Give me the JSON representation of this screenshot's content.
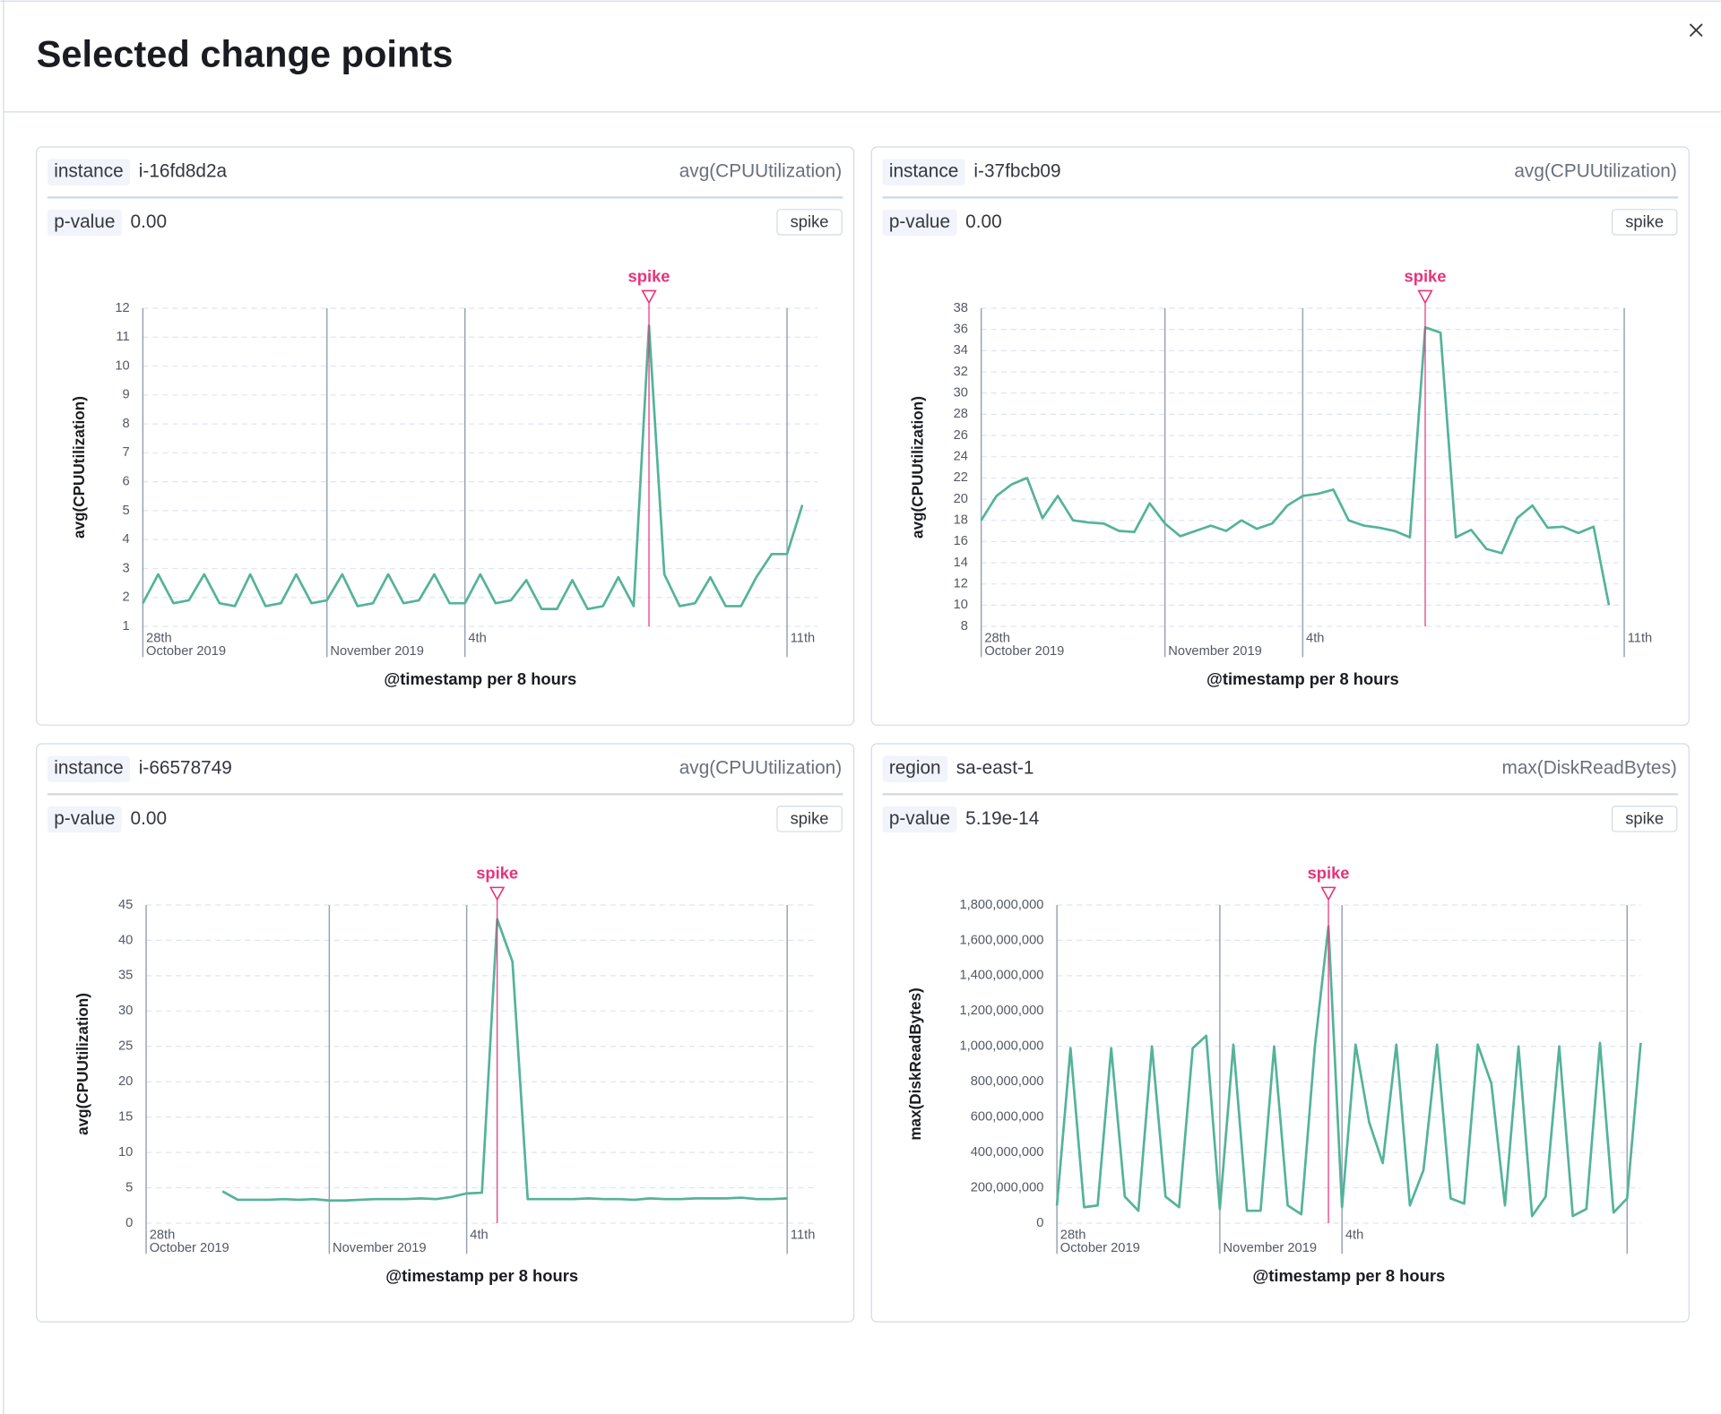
{
  "header": {
    "title": "Selected change points"
  },
  "panels": [
    {
      "field": "instance",
      "value": "i-16fd8d2a",
      "metric": "avg(CPUUtilization)",
      "pvalue_label": "p-value",
      "pvalue": "0.00",
      "badge": "spike"
    },
    {
      "field": "instance",
      "value": "i-37fbcb09",
      "metric": "avg(CPUUtilization)",
      "pvalue_label": "p-value",
      "pvalue": "0.00",
      "badge": "spike"
    },
    {
      "field": "instance",
      "value": "i-66578749",
      "metric": "avg(CPUUtilization)",
      "pvalue_label": "p-value",
      "pvalue": "0.00",
      "badge": "spike"
    },
    {
      "field": "region",
      "value": "sa-east-1",
      "metric": "max(DiskReadBytes)",
      "pvalue_label": "p-value",
      "pvalue": "5.19e-14",
      "badge": "spike"
    }
  ],
  "chart_data": [
    {
      "type": "line",
      "y_label": "avg(CPUUtilization)",
      "x_label": "@timestamp per 8 hours",
      "color": "#54b399",
      "grid": true,
      "annotation": {
        "x": 33,
        "label": "spike",
        "color": "#e7337a"
      },
      "xlim": [
        0,
        44
      ],
      "xticks": [
        {
          "value": 0,
          "label": "28th\nOctober 2019"
        },
        {
          "value": 12,
          "label": "November 2019"
        },
        {
          "value": 21,
          "label": "4th"
        },
        {
          "value": 42,
          "label": "11th"
        }
      ],
      "ylim": [
        1,
        12
      ],
      "yticks": [
        1,
        2,
        3,
        4,
        5,
        6,
        7,
        8,
        9,
        10,
        11,
        12
      ],
      "values": [
        1.8,
        2.8,
        1.8,
        1.9,
        2.8,
        1.8,
        1.7,
        2.8,
        1.7,
        1.8,
        2.8,
        1.8,
        1.9,
        2.8,
        1.7,
        1.8,
        2.8,
        1.8,
        1.9,
        2.8,
        1.8,
        1.8,
        2.8,
        1.8,
        1.9,
        2.6,
        1.6,
        1.6,
        2.6,
        1.6,
        1.7,
        2.7,
        1.7,
        11.4,
        2.8,
        1.7,
        1.8,
        2.7,
        1.7,
        1.7,
        2.7,
        3.5,
        3.5,
        5.2
      ]
    },
    {
      "type": "line",
      "y_label": "avg(CPUUtilization)",
      "x_label": "@timestamp per 8 hours",
      "color": "#54b399",
      "grid": true,
      "annotation": {
        "x": 29,
        "label": "spike",
        "color": "#e7337a"
      },
      "xlim": [
        0,
        42
      ],
      "xticks": [
        {
          "value": 0,
          "label": "28th\nOctober 2019"
        },
        {
          "value": 12,
          "label": "November 2019"
        },
        {
          "value": 21,
          "label": "4th"
        },
        {
          "value": 42,
          "label": "11th"
        }
      ],
      "ylim": [
        8,
        38
      ],
      "yticks": [
        8,
        10,
        12,
        14,
        16,
        18,
        20,
        22,
        24,
        26,
        28,
        30,
        32,
        34,
        36,
        38
      ],
      "values": [
        18,
        20.3,
        21.4,
        22,
        18.2,
        20.3,
        18,
        17.8,
        17.7,
        17,
        16.9,
        19.6,
        17.7,
        16.5,
        17,
        17.5,
        17,
        18,
        17.2,
        17.7,
        19.4,
        20.3,
        20.5,
        20.9,
        18,
        17.5,
        17.3,
        17,
        16.4,
        36.2,
        35.7,
        16.4,
        17.1,
        15.3,
        14.9,
        18.2,
        19.4,
        17.3,
        17.4,
        16.8,
        17.4,
        10
      ]
    },
    {
      "type": "line",
      "y_label": "avg(CPUUtilization)",
      "x_label": "@timestamp per 8 hours",
      "color": "#54b399",
      "grid": true,
      "annotation": {
        "x": 23,
        "label": "spike",
        "color": "#e7337a"
      },
      "xlim": [
        0,
        44
      ],
      "xticks": [
        {
          "value": 0,
          "label": "28th\nOctober 2019"
        },
        {
          "value": 12,
          "label": "November 2019"
        },
        {
          "value": 21,
          "label": "4th"
        },
        {
          "value": 42,
          "label": "11th"
        }
      ],
      "ylim": [
        0,
        45
      ],
      "yticks": [
        0,
        5,
        10,
        15,
        20,
        25,
        30,
        35,
        40,
        45
      ],
      "values": [
        null,
        null,
        null,
        null,
        null,
        4.5,
        3.3,
        3.3,
        3.3,
        3.4,
        3.3,
        3.4,
        3.2,
        3.2,
        3.3,
        3.4,
        3.4,
        3.4,
        3.5,
        3.4,
        3.7,
        4.2,
        4.3,
        43,
        37,
        3.4,
        3.4,
        3.4,
        3.4,
        3.5,
        3.4,
        3.4,
        3.3,
        3.5,
        3.4,
        3.4,
        3.5,
        3.5,
        3.5,
        3.6,
        3.4,
        3.4,
        3.5
      ]
    },
    {
      "type": "line",
      "y_label": "max(DiskReadBytes)",
      "x_label": "@timestamp per 8 hours",
      "color": "#54b399",
      "grid": true,
      "annotation": {
        "x": 20,
        "label": "spike",
        "color": "#e7337a"
      },
      "xlim": [
        0,
        43
      ],
      "xticks": [
        {
          "value": 0,
          "label": "28th\nOctober 2019"
        },
        {
          "value": 12,
          "label": "November 2019"
        },
        {
          "value": 21,
          "label": "4th"
        },
        {
          "value": 42,
          "label": null
        }
      ],
      "ylim": [
        0,
        1800000000
      ],
      "yticks": [
        0,
        {
          "value": 200000000,
          "label": "200,000,000"
        },
        {
          "value": 400000000,
          "label": "400,000,000"
        },
        {
          "value": 600000000,
          "label": "600,000,000"
        },
        {
          "value": 800000000,
          "label": "800,000,000"
        },
        {
          "value": 1000000000,
          "label": "1,000,000,000"
        },
        {
          "value": 1200000000,
          "label": "1,200,000,000"
        },
        {
          "value": 1400000000,
          "label": "1,400,000,000"
        },
        {
          "value": 1600000000,
          "label": "1,600,000,000"
        },
        {
          "value": 1800000000,
          "label": "1,800,000,000"
        }
      ],
      "values": [
        100000000,
        990000000,
        90000000,
        100000000,
        990000000,
        150000000,
        70000000,
        1000000000,
        150000000,
        90000000,
        990000000,
        1060000000,
        80000000,
        1010000000,
        70000000,
        70000000,
        1000000000,
        100000000,
        50000000,
        1000000000,
        1680000000,
        90000000,
        1010000000,
        570000000,
        340000000,
        1010000000,
        100000000,
        300000000,
        1010000000,
        140000000,
        110000000,
        1010000000,
        790000000,
        100000000,
        1000000000,
        40000000,
        150000000,
        1000000000,
        40000000,
        80000000,
        1020000000,
        60000000,
        140000000,
        1020000000
      ]
    }
  ]
}
